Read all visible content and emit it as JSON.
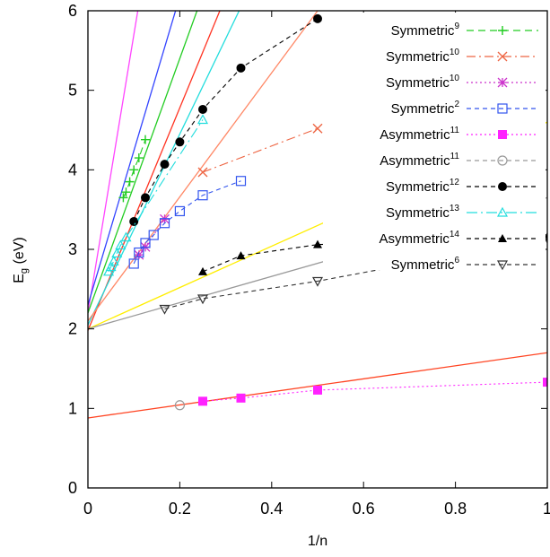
{
  "chart_data": {
    "type": "line",
    "xlabel": "1/n",
    "ylabel": {
      "main": "E",
      "sub": "g",
      "rest": " (eV)"
    },
    "xlim": [
      0,
      1
    ],
    "ylim": [
      0,
      6
    ],
    "xticks": [
      "0",
      "0.2",
      "0.4",
      "0.6",
      "0.8",
      "1"
    ],
    "yticks": [
      "0",
      "1",
      "2",
      "3",
      "4",
      "5",
      "6"
    ],
    "grid": false,
    "legend_position": "top-right",
    "series": [
      {
        "name": "Symmetric",
        "sup": "9",
        "color": "#22cc22",
        "marker": "plus",
        "dash": "8,5",
        "x": [
          0.077,
          0.083,
          0.091,
          0.1,
          0.111,
          0.125
        ],
        "y": [
          3.65,
          3.72,
          3.85,
          4.0,
          4.15,
          4.38
        ]
      },
      {
        "name": "Symmetric",
        "sup": "10",
        "color": "#ee6644",
        "marker": "cross",
        "dash": "10,4,2,4",
        "x": [
          0.25,
          0.5
        ],
        "y": [
          3.97,
          4.52
        ]
      },
      {
        "name": "Symmetric",
        "sup": "10",
        "color": "#cc33cc",
        "marker": "star",
        "dash": "2,3",
        "x": [
          0.111,
          0.125,
          0.167
        ],
        "y": [
          2.93,
          3.03,
          3.38
        ]
      },
      {
        "name": "Symmetric",
        "sup": "2",
        "color": "#3355ee",
        "marker": "square-open",
        "dash": "5,4",
        "x": [
          0.1,
          0.111,
          0.125,
          0.143,
          0.167,
          0.2,
          0.25,
          0.333
        ],
        "y": [
          2.82,
          2.96,
          3.08,
          3.18,
          3.33,
          3.48,
          3.68,
          3.86
        ]
      },
      {
        "name": "Asymmetric",
        "sup": "11",
        "color": "#ff22ff",
        "marker": "square-filled",
        "dash": "2,3",
        "x": [
          0.25,
          0.333,
          0.5,
          1.0
        ],
        "y": [
          1.09,
          1.13,
          1.23,
          1.33
        ]
      },
      {
        "name": "Asymmetric",
        "sup": "11",
        "color": "#999999",
        "marker": "circle-open",
        "dash": "5,4",
        "x": [
          0.2
        ],
        "y": [
          1.04
        ]
      },
      {
        "name": "Symmetric",
        "sup": "12",
        "color": "#000000",
        "marker": "circle-filled",
        "dash": "5,4",
        "x": [
          0.1,
          0.125,
          0.167,
          0.2,
          0.25,
          0.333,
          0.5
        ],
        "y": [
          3.35,
          3.65,
          4.07,
          4.35,
          4.76,
          5.28,
          5.9
        ]
      },
      {
        "name": "Symmetric",
        "sup": "13",
        "color": "#22dddd",
        "marker": "triangle-open",
        "dash": "12,4,2,4",
        "x": [
          0.045,
          0.05,
          0.056,
          0.063,
          0.071,
          0.083,
          0.25
        ],
        "y": [
          2.72,
          2.78,
          2.85,
          2.95,
          3.05,
          3.15,
          4.63
        ]
      },
      {
        "name": "Asymmetric",
        "sup": "14",
        "color": "#000000",
        "marker": "triangle-filled",
        "dash": "5,4",
        "x": [
          0.25,
          0.333,
          0.5,
          1.0
        ],
        "y": [
          2.72,
          2.92,
          3.06,
          3.16
        ]
      },
      {
        "name": "Symmetric",
        "sup": "6",
        "color": "#333333",
        "marker": "triangle-down-open",
        "dash": "5,4",
        "x": [
          0.167,
          0.25,
          0.5,
          1.0
        ],
        "y": [
          2.25,
          2.38,
          2.6,
          3.14
        ]
      }
    ],
    "fit_lines": [
      {
        "color": "#ff44ff",
        "intercept": 2.2,
        "slope": 35.0
      },
      {
        "color": "#3344ff",
        "intercept": 2.3,
        "slope": 19.4
      },
      {
        "color": "#22cc22",
        "intercept": 2.2,
        "slope": 16.0
      },
      {
        "color": "#ff3322",
        "intercept": 1.98,
        "slope": 14.0
      },
      {
        "color": "#22dddd",
        "intercept": 2.05,
        "slope": 12.0
      },
      {
        "color": "#ff8866",
        "intercept": 2.1,
        "slope": 7.8
      },
      {
        "color": "#ffee00",
        "intercept": 2.0,
        "slope": 2.6
      },
      {
        "color": "#999999",
        "intercept": 2.0,
        "slope": 1.65
      },
      {
        "color": "#ff4422",
        "intercept": 0.88,
        "slope": 0.82
      }
    ]
  }
}
